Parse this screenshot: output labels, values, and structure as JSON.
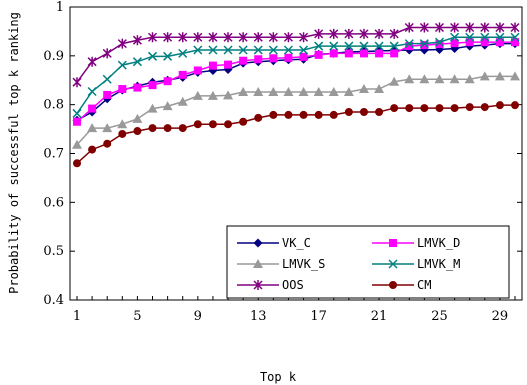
{
  "chart_data": {
    "type": "line",
    "xlabel": "Top k",
    "ylabel": "Probability of successful top k ranking",
    "xlim": [
      1,
      30
    ],
    "ylim": [
      0.4,
      1
    ],
    "x_ticks": [
      "1",
      "5",
      "9",
      "13",
      "17",
      "21",
      "25",
      "29"
    ],
    "y_ticks": [
      "0.4",
      "0.5",
      "0.6",
      "0.7",
      "0.8",
      "0.9",
      "1"
    ],
    "grid": false,
    "legend_position": "lower-right",
    "x": [
      1,
      2,
      3,
      4,
      5,
      6,
      7,
      8,
      9,
      10,
      11,
      12,
      13,
      14,
      15,
      16,
      17,
      18,
      19,
      20,
      21,
      22,
      23,
      24,
      25,
      26,
      27,
      28,
      29,
      30
    ],
    "series": [
      {
        "name": "VK_C",
        "marker": "diamond",
        "color": "#000080",
        "values": [
          0.768,
          0.785,
          0.812,
          0.83,
          0.838,
          0.846,
          0.85,
          0.856,
          0.866,
          0.87,
          0.872,
          0.885,
          0.888,
          0.89,
          0.892,
          0.893,
          0.903,
          0.905,
          0.908,
          0.909,
          0.91,
          0.911,
          0.912,
          0.912,
          0.913,
          0.915,
          0.92,
          0.922,
          0.925,
          0.925
        ]
      },
      {
        "name": "LMVK_D",
        "marker": "square",
        "color": "#ff00ff",
        "values": [
          0.765,
          0.792,
          0.82,
          0.832,
          0.835,
          0.84,
          0.848,
          0.861,
          0.87,
          0.88,
          0.882,
          0.89,
          0.893,
          0.895,
          0.896,
          0.898,
          0.902,
          0.905,
          0.905,
          0.905,
          0.905,
          0.905,
          0.92,
          0.922,
          0.924,
          0.926,
          0.928,
          0.928,
          0.928,
          0.928
        ]
      },
      {
        "name": "LMVK_S",
        "marker": "triangle",
        "color": "#999999",
        "values": [
          0.718,
          0.752,
          0.752,
          0.76,
          0.771,
          0.792,
          0.797,
          0.806,
          0.818,
          0.818,
          0.819,
          0.826,
          0.826,
          0.826,
          0.826,
          0.826,
          0.826,
          0.826,
          0.826,
          0.832,
          0.832,
          0.847,
          0.852,
          0.852,
          0.852,
          0.852,
          0.852,
          0.858,
          0.858,
          0.858
        ]
      },
      {
        "name": "LMVK_M",
        "marker": "x",
        "color": "#008080",
        "values": [
          0.782,
          0.827,
          0.852,
          0.881,
          0.888,
          0.899,
          0.899,
          0.905,
          0.912,
          0.912,
          0.912,
          0.912,
          0.912,
          0.912,
          0.912,
          0.912,
          0.92,
          0.92,
          0.92,
          0.92,
          0.92,
          0.92,
          0.925,
          0.925,
          0.928,
          0.938,
          0.938,
          0.938,
          0.938,
          0.938
        ]
      },
      {
        "name": "OOS",
        "marker": "star",
        "color": "#800080",
        "values": [
          0.846,
          0.888,
          0.905,
          0.925,
          0.932,
          0.938,
          0.938,
          0.938,
          0.938,
          0.938,
          0.938,
          0.938,
          0.938,
          0.938,
          0.938,
          0.938,
          0.945,
          0.945,
          0.945,
          0.945,
          0.945,
          0.945,
          0.958,
          0.958,
          0.958,
          0.958,
          0.958,
          0.958,
          0.958,
          0.958
        ]
      },
      {
        "name": "CM",
        "marker": "circle",
        "color": "#800000",
        "values": [
          0.68,
          0.708,
          0.72,
          0.74,
          0.746,
          0.752,
          0.752,
          0.752,
          0.76,
          0.76,
          0.76,
          0.765,
          0.773,
          0.779,
          0.779,
          0.779,
          0.779,
          0.779,
          0.785,
          0.785,
          0.785,
          0.793,
          0.793,
          0.793,
          0.793,
          0.793,
          0.795,
          0.795,
          0.799,
          0.799
        ]
      }
    ]
  }
}
